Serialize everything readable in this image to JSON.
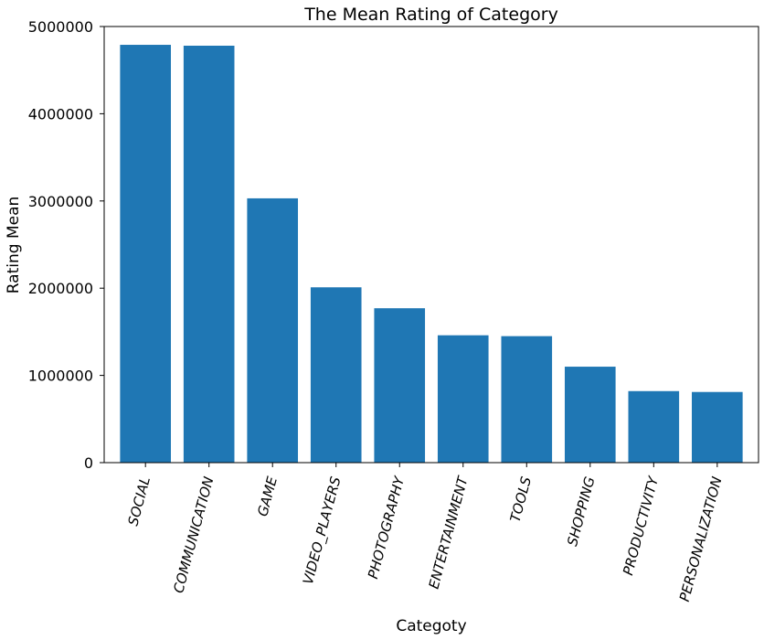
{
  "chart_data": {
    "type": "bar",
    "title": "The Mean Rating of Category",
    "xlabel": "Categoty",
    "ylabel": "Rating Mean",
    "categories": [
      "SOCIAL",
      "COMMUNICATION",
      "GAME",
      "VIDEO_PLAYERS",
      "PHOTOGRAPHY",
      "ENTERTAINMENT",
      "TOOLS",
      "SHOPPING",
      "PRODUCTIVITY",
      "PERSONALIZATION"
    ],
    "values": [
      4790000,
      4780000,
      3030000,
      2010000,
      1770000,
      1460000,
      1450000,
      1100000,
      820000,
      810000
    ],
    "ylim": [
      0,
      5000000
    ],
    "yticks": [
      0,
      1000000,
      2000000,
      3000000,
      4000000,
      5000000
    ],
    "ytick_labels": [
      "0",
      "1000000",
      "2000000",
      "3000000",
      "4000000",
      "5000000"
    ],
    "grid": false,
    "bar_color": "#1f77b4"
  }
}
